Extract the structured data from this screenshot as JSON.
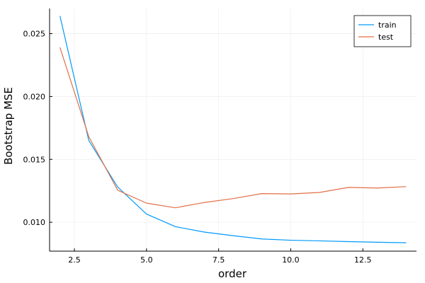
{
  "chart_data": {
    "type": "line",
    "title": "",
    "xlabel": "order",
    "ylabel": "Bootstrap MSE",
    "xlim": [
      1.64,
      14.36
    ],
    "ylim": [
      0.0077,
      0.027
    ],
    "x_ticks": [
      2.5,
      5.0,
      7.5,
      10.0,
      12.5
    ],
    "x_tick_labels": [
      "2.5",
      "5.0",
      "7.5",
      "10.0",
      "12.5"
    ],
    "y_ticks": [
      0.01,
      0.015,
      0.02,
      0.025
    ],
    "y_tick_labels": [
      "0.010",
      "0.015",
      "0.020",
      "0.025"
    ],
    "grid": true,
    "legend_position": "top-right",
    "x": [
      2,
      3,
      4,
      5,
      6,
      7,
      8,
      9,
      10,
      11,
      12,
      13,
      14
    ],
    "series": [
      {
        "name": "train",
        "color": "#009AFA",
        "values": [
          0.0264,
          0.0165,
          0.0128,
          0.01065,
          0.00965,
          0.00922,
          0.00893,
          0.00867,
          0.00857,
          0.00852,
          0.00846,
          0.00841,
          0.00837
        ]
      },
      {
        "name": "test",
        "color": "#E26F46",
        "values": [
          0.0239,
          0.0168,
          0.01255,
          0.01152,
          0.01115,
          0.01157,
          0.01188,
          0.01228,
          0.01225,
          0.01237,
          0.01277,
          0.01272,
          0.01283
        ]
      }
    ]
  }
}
